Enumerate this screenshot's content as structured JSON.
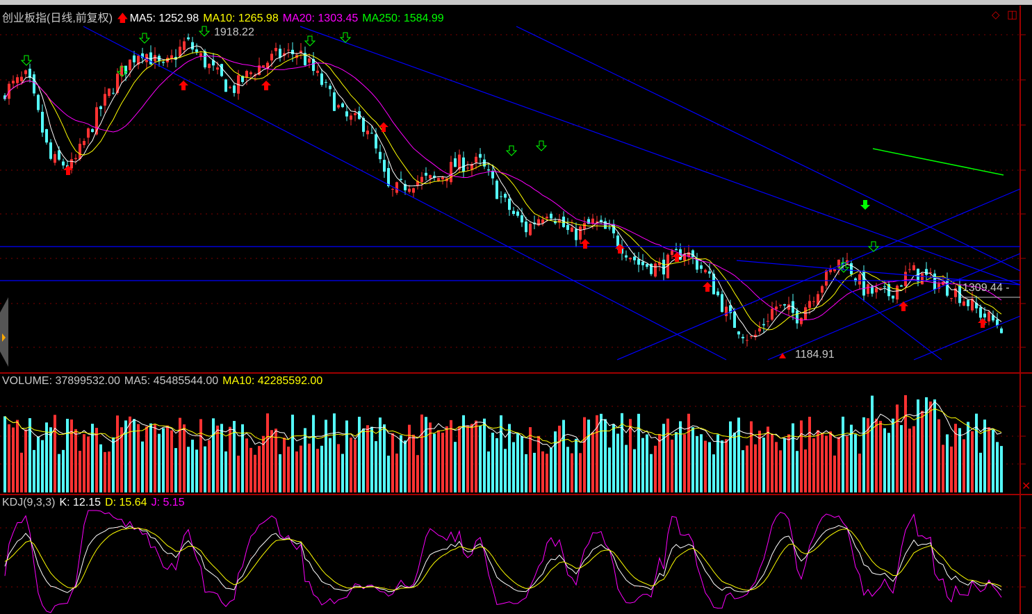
{
  "header": {
    "title": "创业板指(日线,前复权)",
    "ma5": "MA5: 1252.98",
    "ma10": "MA10: 1265.98",
    "ma20": "MA20: 1303.45",
    "ma250": "MA250: 1584.99"
  },
  "volume_header": {
    "volume": "VOLUME: 37899532.00",
    "ma5": "MA5: 45485544.00",
    "ma10": "MA10: 42285592.00"
  },
  "kdj_header": {
    "name": "KDJ(9,3,3)",
    "k": "K: 12.15",
    "d": "D: 15.64",
    "j": "J: 5.15"
  },
  "annotations": {
    "high": "1918.22",
    "low": "1184.91",
    "current": "1309.44 -"
  },
  "colors": {
    "up": "#ff3232",
    "down": "#54fcfc",
    "ma5": "#ffffff",
    "ma10": "#ffff00",
    "ma20": "#ff00ff",
    "ma250": "#00ff00",
    "trendline": "#0000ff",
    "axis": "#a00000"
  },
  "chart_data": {
    "type": "candlestick",
    "price_range": [
      1160,
      1940
    ],
    "approx_close_path": [
      1787,
      1818,
      1629,
      1613,
      1724,
      1818,
      1882,
      1834,
      1898,
      1842,
      1787,
      1834,
      1866,
      1874,
      1803,
      1724,
      1708,
      1550,
      1582,
      1582,
      1621,
      1621,
      1534,
      1471,
      1519,
      1455,
      1487,
      1447,
      1392,
      1384,
      1424,
      1368,
      1266,
      1218,
      1297,
      1274,
      1345,
      1408,
      1329,
      1321,
      1376,
      1352,
      1329,
      1282,
      1250
    ],
    "high": 1918.22,
    "low": 1184.91,
    "indicators": {
      "MA5": 1252.98,
      "MA10": 1265.98,
      "MA20": 1303.45,
      "MA250": 1584.99,
      "VOLUME": 37899532.0,
      "VOL_MA5": 45485544.0,
      "VOL_MA10": 42285592.0,
      "K": 12.15,
      "D": 15.64,
      "J": 5.15
    }
  }
}
